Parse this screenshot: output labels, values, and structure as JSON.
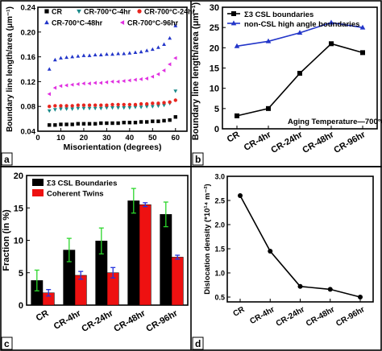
{
  "chart_data": [
    {
      "panel": "a",
      "type": "scatter",
      "xlabel": "Misorientation (degrees)",
      "ylabel": "Boundary line length/area (μm⁻¹)",
      "xlim": [
        0,
        65
      ],
      "ylim": [
        0.04,
        0.24
      ],
      "xticks": [
        "0",
        "10",
        "20",
        "30",
        "40",
        "50",
        "60"
      ],
      "yticks": [
        "0.04",
        "0.08",
        "0.12",
        "0.16",
        "0.20",
        "0.24"
      ],
      "legend_position": "top",
      "x": [
        5,
        7.5,
        10,
        12.5,
        15,
        17.5,
        20,
        22.5,
        25,
        27.5,
        30,
        32.5,
        35,
        37.5,
        40,
        42.5,
        45,
        47.5,
        50,
        52.5,
        55,
        57.5,
        60
      ],
      "series": [
        {
          "name": "CR",
          "marker": "square",
          "color": "#000000",
          "values": [
            0.05,
            0.05,
            0.051,
            0.051,
            0.051,
            0.052,
            0.052,
            0.052,
            0.052,
            0.053,
            0.053,
            0.053,
            0.053,
            0.054,
            0.054,
            0.054,
            0.055,
            0.055,
            0.056,
            0.056,
            0.057,
            0.058,
            0.063
          ]
        },
        {
          "name": "CR-700°C-4hr",
          "marker": "triangle-down",
          "color": "#1a8a8a",
          "values": [
            0.073,
            0.075,
            0.076,
            0.076,
            0.076,
            0.077,
            0.077,
            0.077,
            0.077,
            0.077,
            0.078,
            0.078,
            0.078,
            0.078,
            0.078,
            0.079,
            0.079,
            0.08,
            0.08,
            0.081,
            0.082,
            0.085,
            0.105
          ]
        },
        {
          "name": "CR-700°C-24hr",
          "marker": "circle",
          "color": "#e8261f",
          "values": [
            0.08,
            0.081,
            0.081,
            0.081,
            0.081,
            0.082,
            0.082,
            0.082,
            0.082,
            0.082,
            0.082,
            0.083,
            0.083,
            0.083,
            0.083,
            0.083,
            0.084,
            0.084,
            0.085,
            0.085,
            0.086,
            0.087,
            0.09
          ]
        },
        {
          "name": "CR-700°C-48hr",
          "marker": "triangle-up",
          "color": "#2336c9",
          "values": [
            0.14,
            0.155,
            0.158,
            0.159,
            0.16,
            0.161,
            0.162,
            0.162,
            0.163,
            0.163,
            0.164,
            0.164,
            0.165,
            0.165,
            0.166,
            0.167,
            0.168,
            0.17,
            0.172,
            0.175,
            0.18,
            0.19,
            0.21
          ]
        },
        {
          "name": "CR-700°C-96hr",
          "marker": "triangle-left",
          "color": "#e030e0",
          "values": [
            0.1,
            0.11,
            0.113,
            0.114,
            0.115,
            0.116,
            0.117,
            0.117,
            0.118,
            0.118,
            0.119,
            0.12,
            0.12,
            0.121,
            0.122,
            0.123,
            0.124,
            0.125,
            0.128,
            0.132,
            0.138,
            0.148,
            0.158
          ]
        }
      ],
      "panel_label": "a"
    },
    {
      "panel": "b",
      "type": "line",
      "ylabel": "Boundary line length/area (μm⁻¹)",
      "categories": [
        "CR",
        "CR-4hr",
        "CR-24hr",
        "CR-48hr",
        "CR-96hr"
      ],
      "ylim": [
        0,
        30
      ],
      "yticks": [
        "0",
        "5",
        "10",
        "15",
        "20",
        "25",
        "30"
      ],
      "legend_position": "top-left",
      "annotation": "Aging Temperature—700°C",
      "series": [
        {
          "name": "Σ3 CSL boundaries",
          "marker": "square",
          "color": "#000000",
          "values": [
            3.2,
            5.0,
            13.7,
            21.0,
            18.8
          ]
        },
        {
          "name": "non-CSL high angle boundaries",
          "marker": "triangle-up",
          "color": "#2336c9",
          "values": [
            20.4,
            21.6,
            23.7,
            26.2,
            25.0
          ]
        }
      ],
      "panel_label": "b"
    },
    {
      "panel": "c",
      "type": "bar",
      "ylabel": "Fraction (in %)",
      "categories": [
        "CR",
        "CR-4hr",
        "CR-24hr",
        "CR-48hr",
        "CR-96hr"
      ],
      "ylim": [
        0,
        20
      ],
      "yticks": [
        "0",
        "5",
        "10",
        "15",
        "20"
      ],
      "legend_position": "top-left",
      "series": [
        {
          "name": "Σ3 CSL Boundaries",
          "color": "#000000",
          "error_color": "#2bd62b",
          "values": [
            3.8,
            8.5,
            9.9,
            16.1,
            14.0
          ],
          "errors": [
            1.6,
            1.8,
            2.0,
            1.9,
            1.9
          ]
        },
        {
          "name": "Coherent Twins",
          "color": "#ee1111",
          "error_color": "#2233dd",
          "values": [
            1.9,
            4.6,
            5.0,
            15.5,
            7.4
          ],
          "errors": [
            0.5,
            0.6,
            0.8,
            0.3,
            0.3
          ]
        }
      ],
      "panel_label": "c"
    },
    {
      "panel": "d",
      "type": "line",
      "ylabel": "Dislocation density (*10¹⁴ m⁻²)",
      "categories": [
        "CR",
        "CR-4hr",
        "CR-24hr",
        "CR-48hr",
        "CR-96hr"
      ],
      "ylim": [
        0.4,
        3.0
      ],
      "yticks": [
        "0.5",
        "1.0",
        "1.5",
        "2.0",
        "2.5",
        "3.0"
      ],
      "series": [
        {
          "name": "",
          "marker": "circle",
          "color": "#000000",
          "values": [
            2.6,
            1.45,
            0.72,
            0.66,
            0.5
          ]
        }
      ],
      "panel_label": "d"
    }
  ]
}
